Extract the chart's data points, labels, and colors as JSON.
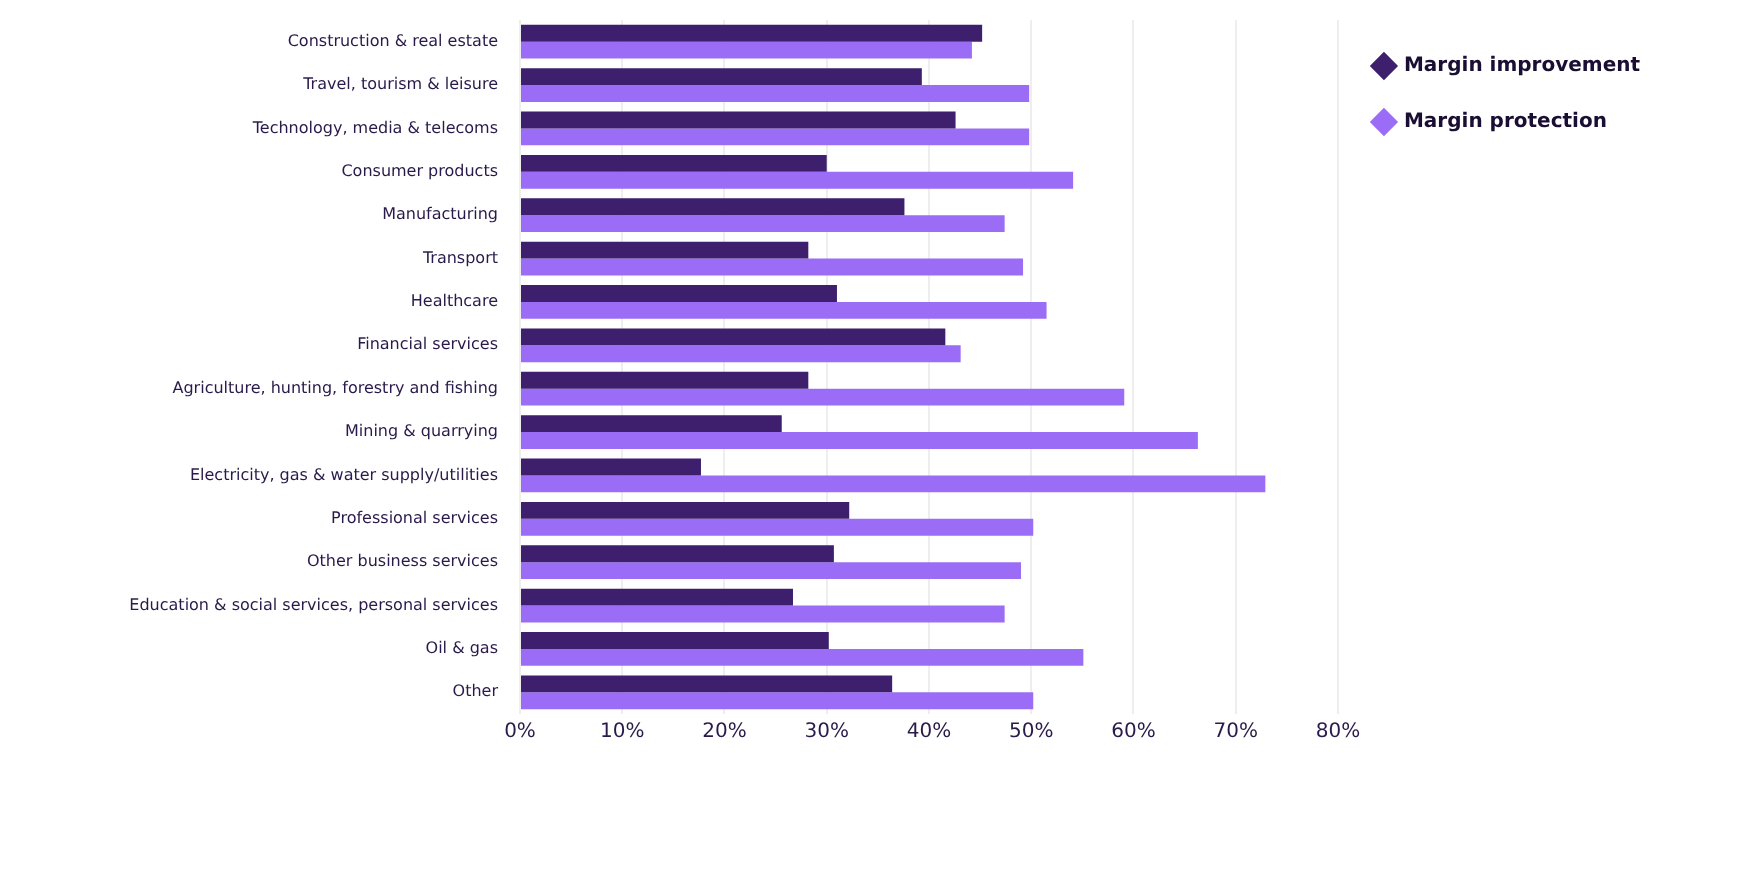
{
  "chart_data": {
    "type": "bar",
    "orientation": "horizontal",
    "categories": [
      "Construction & real estate",
      "Travel, tourism & leisure",
      "Technology, media & telecoms",
      "Consumer products",
      "Manufacturing",
      "Transport",
      "Healthcare",
      "Financial services",
      "Agriculture, hunting, forestry and fishing",
      "Mining & quarrying",
      "Electricity, gas & water supply/utilities",
      "Professional services",
      "Other business services",
      "Education & social services, personal services",
      "Oil & gas",
      "Other"
    ],
    "series": [
      {
        "name": "Margin improvement",
        "color": "#3d1f6e",
        "values": [
          45.2,
          39.3,
          42.6,
          30.0,
          37.6,
          28.2,
          31.0,
          41.6,
          28.2,
          25.6,
          17.7,
          32.2,
          30.7,
          26.7,
          30.2,
          36.4
        ]
      },
      {
        "name": "Margin protection",
        "color": "#9b6cf5",
        "values": [
          44.2,
          49.8,
          49.8,
          54.1,
          47.4,
          49.2,
          51.5,
          43.1,
          59.1,
          66.3,
          72.9,
          50.2,
          49.0,
          47.4,
          55.1,
          50.2
        ]
      }
    ],
    "xlim": [
      0,
      80
    ],
    "xticks": [
      {
        "value": 0,
        "label": "0%"
      },
      {
        "value": 10,
        "label": "10%"
      },
      {
        "value": 20,
        "label": "20%"
      },
      {
        "value": 30,
        "label": "30%"
      },
      {
        "value": 40,
        "label": "40%"
      },
      {
        "value": 50,
        "label": "50%"
      },
      {
        "value": 60,
        "label": "60%"
      },
      {
        "value": 70,
        "label": "70%"
      },
      {
        "value": 80,
        "label": "80%"
      }
    ],
    "grid": "x",
    "legend": "top right"
  }
}
